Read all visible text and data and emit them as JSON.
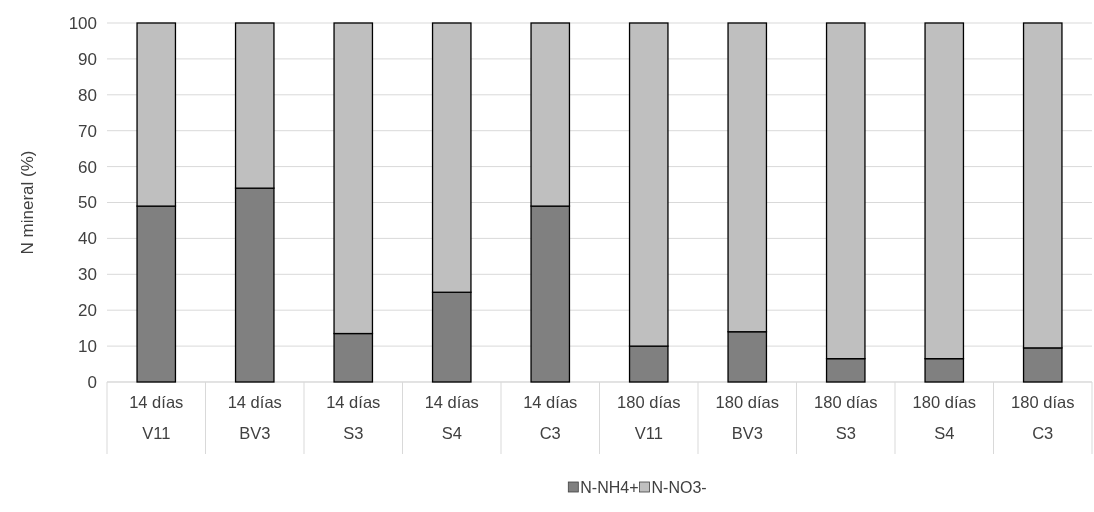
{
  "chart_data": {
    "type": "bar",
    "stacked": true,
    "ylabel": "N mineral (%)",
    "categories": [
      "14 días\nV11",
      "14 días\nBV3",
      "14 días\nS3",
      "14 días\nS4",
      "14 días\nC3",
      "180 días\nV11",
      "180 días\nBV3",
      "180 días\nS3",
      "180 días\nS4",
      "180 días\nC3"
    ],
    "series": [
      {
        "name": "N-NH4+",
        "color": "#808080",
        "values": [
          49,
          54,
          13.5,
          25,
          49,
          10,
          14,
          6.5,
          6.5,
          9.5
        ]
      },
      {
        "name": "N-NO3-",
        "color": "#bfbfbf",
        "values": [
          51,
          46,
          86.5,
          75,
          51,
          90,
          86,
          93.5,
          93.5,
          90.5
        ]
      }
    ],
    "ylim": [
      0,
      100
    ],
    "yticks": [
      0,
      10,
      20,
      30,
      40,
      50,
      60,
      70,
      80,
      90,
      100
    ],
    "grid": "y",
    "legend": "bottom"
  }
}
